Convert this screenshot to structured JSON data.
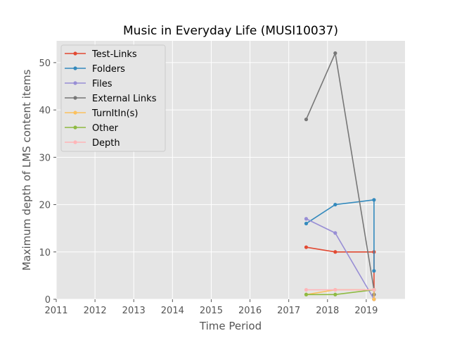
{
  "chart_data": {
    "type": "line",
    "title": "Music in Everyday Life (MUSI10037)",
    "xlabel": "Time Period",
    "ylabel": "Maximum depth of LMS content items",
    "xlim": [
      2011,
      2020
    ],
    "ylim": [
      0,
      55
    ],
    "x_ticks": [
      "2011",
      "2012",
      "2013",
      "2014",
      "2015",
      "2016",
      "2017",
      "2018",
      "2019"
    ],
    "y_ticks": [
      "0",
      "10",
      "20",
      "30",
      "40",
      "50"
    ],
    "x_tick_values": [
      2011,
      2012,
      2013,
      2014,
      2015,
      2016,
      2017,
      2018,
      2019
    ],
    "y_tick_values": [
      0,
      10,
      20,
      30,
      40,
      50
    ],
    "grid": true,
    "legend_position": "top-left",
    "series": [
      {
        "name": "Test-Links",
        "color": "#E24A33",
        "x": [
          2017.45,
          2018.2,
          2019.2,
          2019.2
        ],
        "y": [
          11,
          10,
          10,
          0
        ]
      },
      {
        "name": "Folders",
        "color": "#348ABD",
        "x": [
          2017.45,
          2018.2,
          2019.2,
          2019.2
        ],
        "y": [
          16,
          20,
          21,
          6
        ]
      },
      {
        "name": "Files",
        "color": "#988ED5",
        "x": [
          2017.45,
          2018.2,
          2019.2,
          2019.2
        ],
        "y": [
          17,
          14,
          0,
          0
        ]
      },
      {
        "name": "External Links",
        "color": "#777777",
        "x": [
          2017.45,
          2018.2,
          2019.2,
          2019.2
        ],
        "y": [
          38,
          52,
          2,
          1
        ]
      },
      {
        "name": "TurnItIn(s)",
        "color": "#FBC15E",
        "x": [
          2017.45,
          2018.2,
          2019.2,
          2019.2
        ],
        "y": [
          1,
          2,
          2,
          0
        ]
      },
      {
        "name": "Other",
        "color": "#8EBA42",
        "x": [
          2017.45,
          2018.2,
          2019.2
        ],
        "y": [
          1,
          1,
          2
        ]
      },
      {
        "name": "Depth",
        "color": "#FFB5B8",
        "x": [
          2017.45,
          2018.2,
          2019.2
        ],
        "y": [
          2,
          2,
          2
        ]
      }
    ]
  }
}
